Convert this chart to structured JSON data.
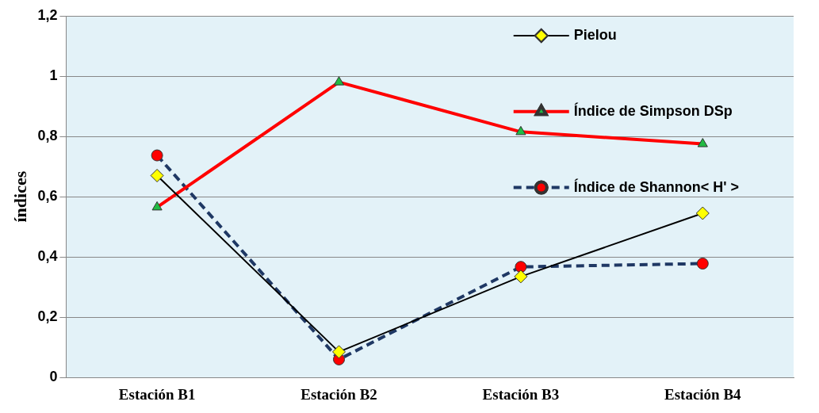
{
  "chart_data": {
    "type": "line",
    "ylabel": "índices",
    "categories": [
      "Estación B1",
      "Estación B2",
      "Estación B3",
      "Estación B4"
    ],
    "series": [
      {
        "name": "Pielou",
        "color": "#000000",
        "marker": "diamond",
        "line_style": "solid",
        "values": [
          0.67,
          0.085,
          0.335,
          0.545
        ]
      },
      {
        "name": "Índice de Simpson DSp",
        "color": "#ff0000",
        "marker": "triangle",
        "line_style": "solid",
        "values": [
          0.565,
          0.98,
          0.815,
          0.775
        ]
      },
      {
        "name": "Índice de Shannon< H' >",
        "color": "#1f3864",
        "marker": "circle",
        "line_style": "dashed",
        "values": [
          0.737,
          0.06,
          0.367,
          0.378
        ]
      }
    ],
    "ylim": [
      0,
      1.2
    ],
    "yticks": [
      {
        "value": 0,
        "label": "0"
      },
      {
        "value": 0.2,
        "label": "0,2"
      },
      {
        "value": 0.4,
        "label": "0,4"
      },
      {
        "value": 0.6,
        "label": "0,6"
      },
      {
        "value": 0.8,
        "label": "0,8"
      },
      {
        "value": 1,
        "label": "1"
      },
      {
        "value": 1.2,
        "label": "1,2"
      }
    ],
    "grid": "y",
    "legend": "top right"
  }
}
